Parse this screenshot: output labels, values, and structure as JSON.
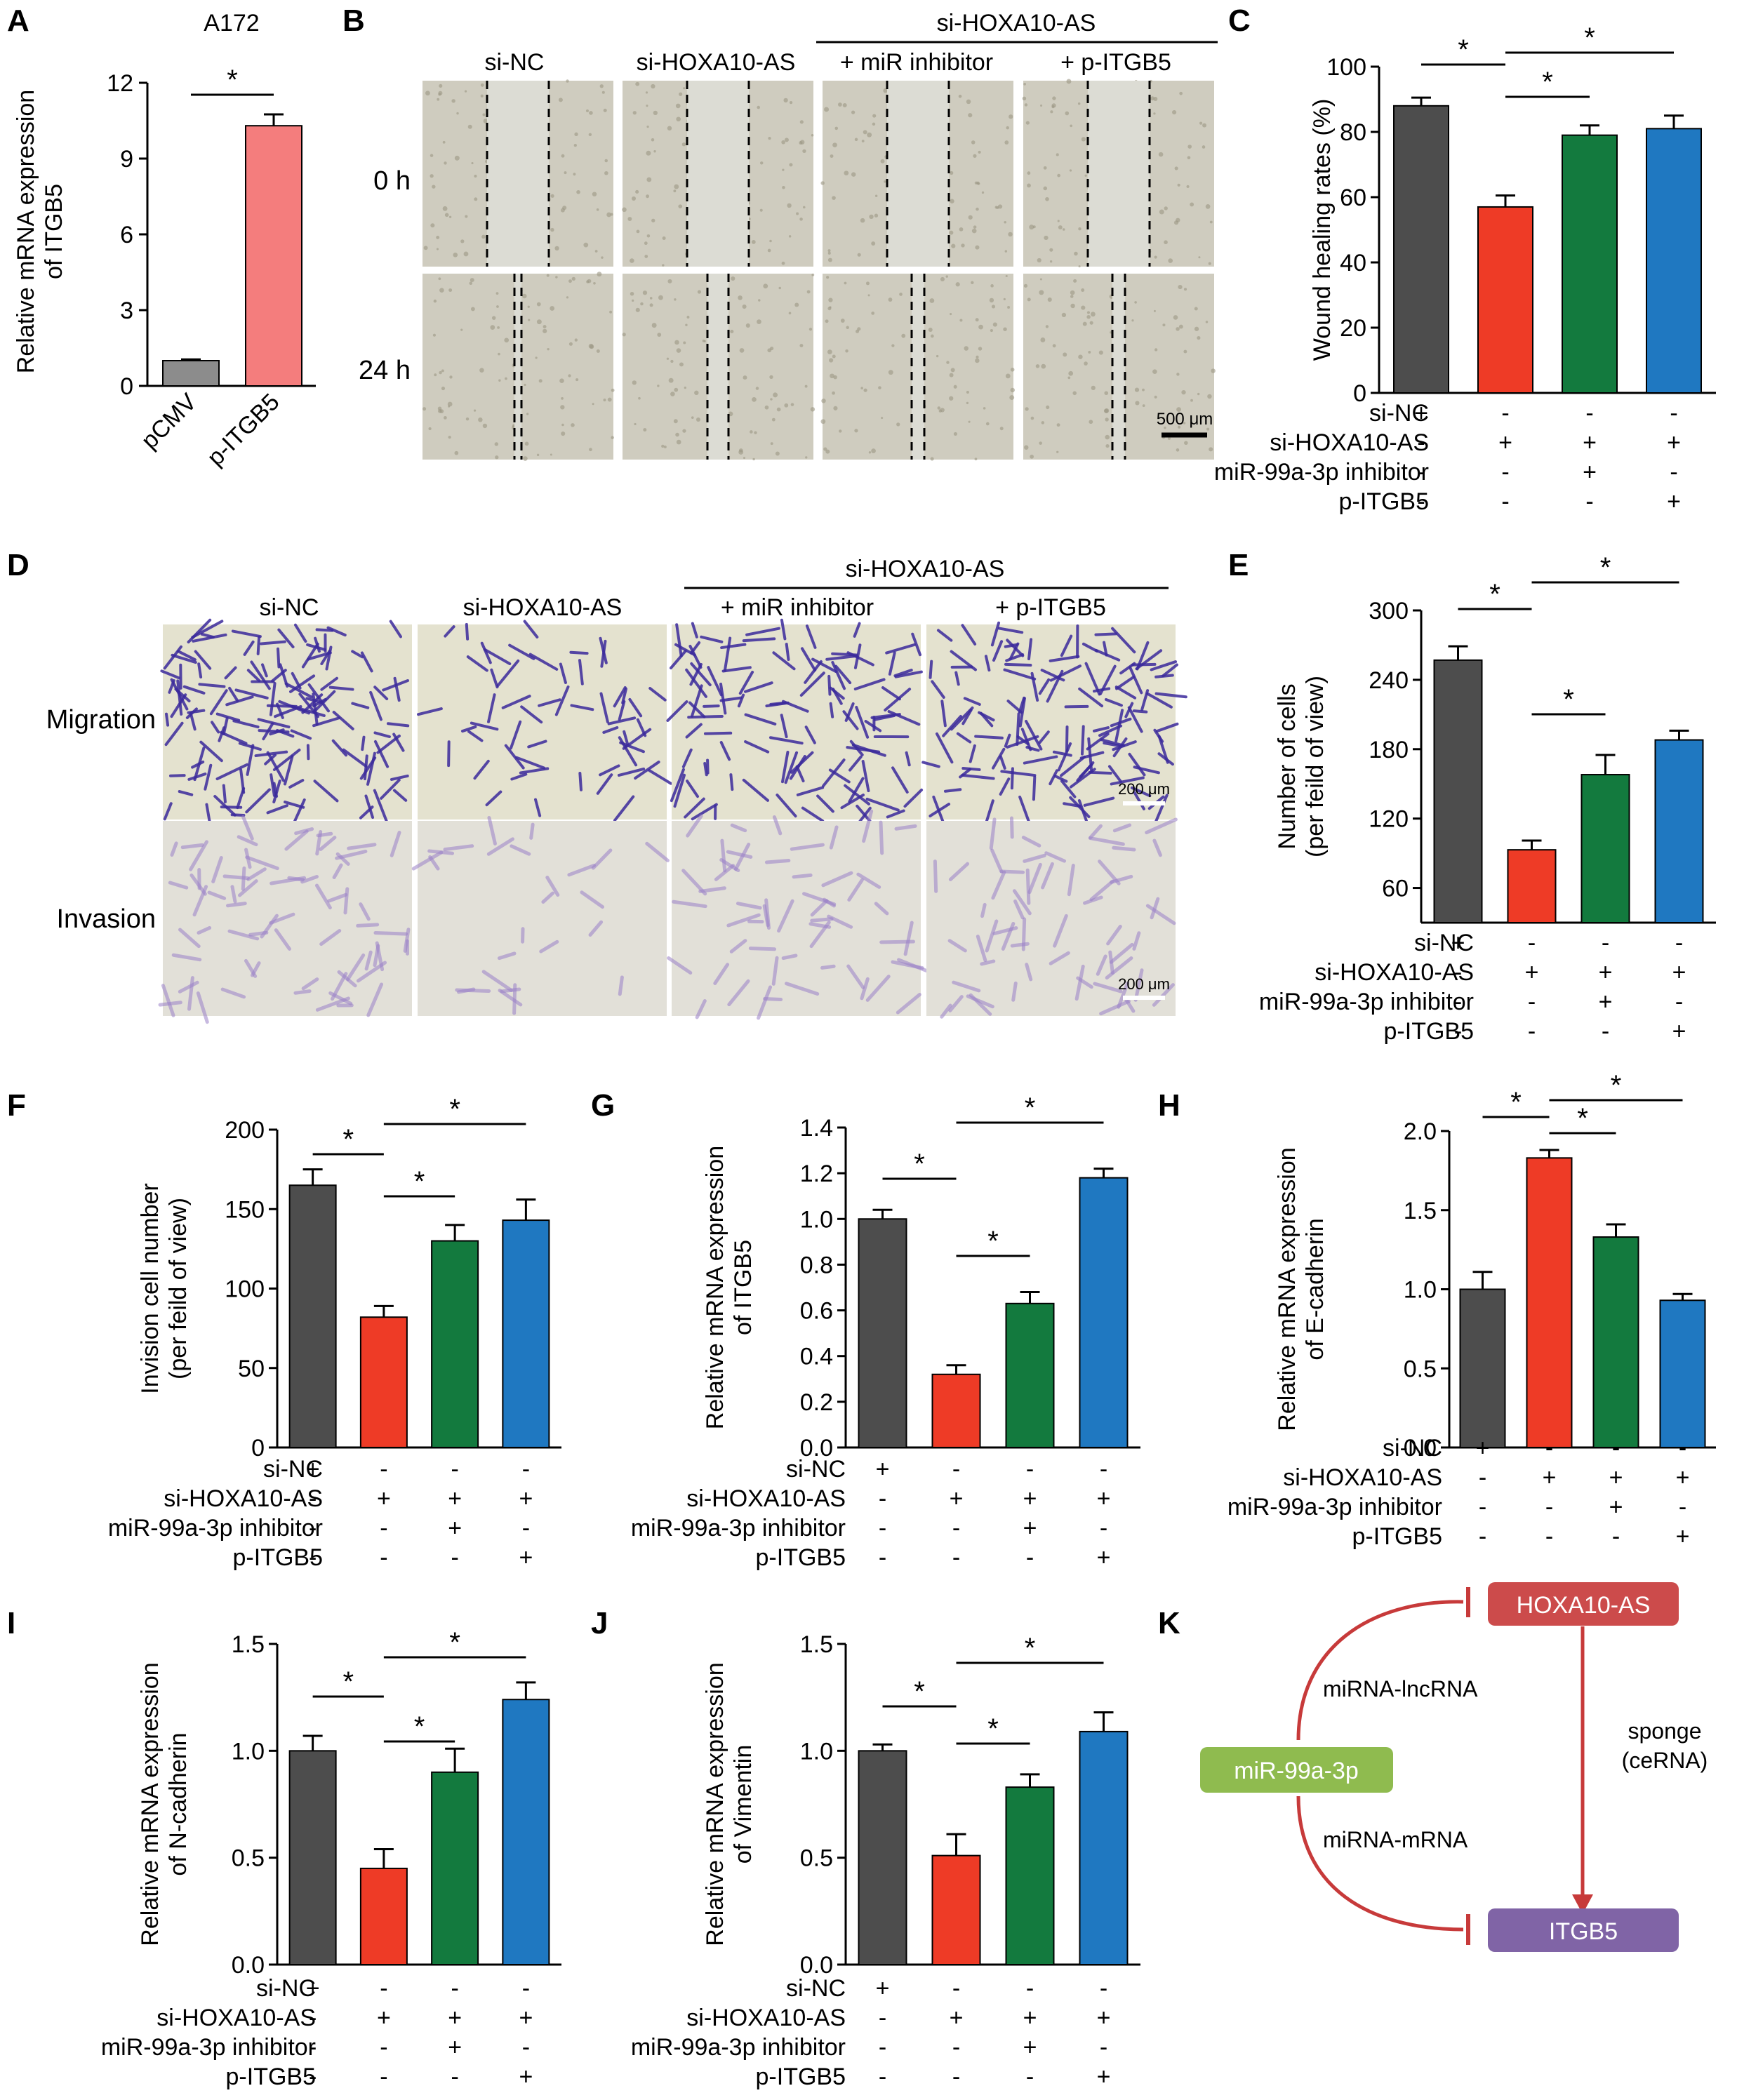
{
  "panel_labels": [
    "A",
    "B",
    "C",
    "D",
    "E",
    "F",
    "G",
    "H",
    "I",
    "J",
    "K"
  ],
  "colors": {
    "dark_gray": "#4d4d4d",
    "red": "#ee3b26",
    "green": "#137a3e",
    "blue": "#1f78c1",
    "light_gray": "#8c8c8c",
    "pink": "#f47d7d",
    "node_red": "#cc4b4b",
    "node_green": "#8fbb4f",
    "node_purple": "#8064a6",
    "arrow_red": "#c73a3a"
  },
  "group_rows": [
    "si-NC",
    "si-HOXA10-AS",
    "miR-99a-3p inhibitor",
    "p-ITGB5"
  ],
  "group_signs": [
    [
      "+",
      "-",
      "-",
      "-"
    ],
    [
      "-",
      "+",
      "+",
      "+"
    ],
    [
      "-",
      "-",
      "+",
      "-"
    ],
    [
      "-",
      "-",
      "-",
      "+"
    ]
  ],
  "star": "*",
  "panel_A": {
    "title": "A172",
    "ylabel_lines": [
      "Relative mRNA expression",
      "of ITGB5"
    ],
    "categories": [
      "pCMV",
      "p-ITGB5"
    ],
    "values": [
      1.0,
      10.3
    ],
    "errors": [
      0.05,
      0.45
    ],
    "ylim": [
      0,
      12
    ],
    "yticks": [
      0,
      3,
      6,
      9,
      12
    ]
  },
  "panel_B": {
    "col_labels": [
      "si-NC",
      "si-HOXA10-AS",
      "+ miR inhibitor",
      "+ p-ITGB5"
    ],
    "group_label": "si-HOXA10-AS",
    "row_labels": [
      "0 h",
      "24 h"
    ],
    "scale_bar": "500 μm"
  },
  "panel_D": {
    "col_labels": [
      "si-NC",
      "si-HOXA10-AS",
      "+ miR inhibitor",
      "+ p-ITGB5"
    ],
    "group_label": "si-HOXA10-AS",
    "row_labels": [
      "Migration",
      "Invasion"
    ],
    "scale_bar": "200 μm"
  },
  "panel_K": {
    "nodes": {
      "hoxa": "HOXA10-AS",
      "mir": "miR-99a-3p",
      "itgb": "ITGB5"
    },
    "edge_labels": {
      "top": "miRNA-lncRNA",
      "bottom": "miRNA-mRNA",
      "sponge1": "sponge",
      "sponge2": "(ceRNA)"
    }
  },
  "chart_data": [
    {
      "panel": "A",
      "type": "bar",
      "title": "A172",
      "categories": [
        "pCMV",
        "p-ITGB5"
      ],
      "values": [
        1.0,
        10.3
      ],
      "ylabel": "Relative mRNA expression of ITGB5",
      "ylim": [
        0,
        12
      ]
    },
    {
      "panel": "C",
      "type": "bar",
      "ylabel": "Wound healing rates (%)",
      "ylim": [
        0,
        100
      ],
      "yticks": [
        0,
        20,
        40,
        60,
        80,
        100
      ],
      "values": [
        88,
        57,
        79,
        81
      ],
      "errors": [
        2.5,
        3.5,
        3,
        4
      ]
    },
    {
      "panel": "E",
      "type": "bar",
      "ylabel": "Number of cells (per feild of view)",
      "ylim": [
        0,
        300
      ],
      "yticks": [
        60,
        120,
        180,
        240,
        300
      ],
      "values": [
        257,
        93,
        158,
        188
      ],
      "errors": [
        12,
        8,
        17,
        8
      ]
    },
    {
      "panel": "F",
      "type": "bar",
      "ylabel": "Invision cell number (per feild of view)",
      "ylim": [
        0,
        200
      ],
      "yticks": [
        0,
        50,
        100,
        150,
        200
      ],
      "values": [
        165,
        82,
        130,
        143
      ],
      "errors": [
        10,
        7,
        10,
        13
      ]
    },
    {
      "panel": "G",
      "type": "bar",
      "ylabel": "Relative mRNA expression of ITGB5",
      "ylim": [
        0,
        1.4
      ],
      "yticks": [
        0.0,
        0.2,
        0.4,
        0.6,
        0.8,
        1.0,
        1.2,
        1.4
      ],
      "values": [
        1.0,
        0.32,
        0.63,
        1.18
      ],
      "errors": [
        0.04,
        0.04,
        0.05,
        0.04
      ]
    },
    {
      "panel": "H",
      "type": "bar",
      "ylabel": "Relative mRNA expression of E-cadherin",
      "ylim": [
        0,
        2.0
      ],
      "yticks": [
        0.0,
        0.5,
        1.0,
        1.5,
        2.0
      ],
      "values": [
        1.0,
        1.83,
        1.33,
        0.93
      ],
      "errors": [
        0.11,
        0.05,
        0.08,
        0.04
      ]
    },
    {
      "panel": "I",
      "type": "bar",
      "ylabel": "Relative mRNA expression of N-cadherin",
      "ylim": [
        0,
        1.5
      ],
      "yticks": [
        0.0,
        0.5,
        1.0,
        1.5
      ],
      "values": [
        1.0,
        0.45,
        0.9,
        1.24
      ],
      "errors": [
        0.07,
        0.09,
        0.11,
        0.08
      ]
    },
    {
      "panel": "J",
      "type": "bar",
      "ylabel": "Relative mRNA expression of Vimentin",
      "ylim": [
        0,
        1.5
      ],
      "yticks": [
        0.0,
        0.5,
        1.0,
        1.5
      ],
      "values": [
        1.0,
        0.51,
        0.83,
        1.09
      ],
      "errors": [
        0.03,
        0.1,
        0.06,
        0.09
      ]
    }
  ]
}
